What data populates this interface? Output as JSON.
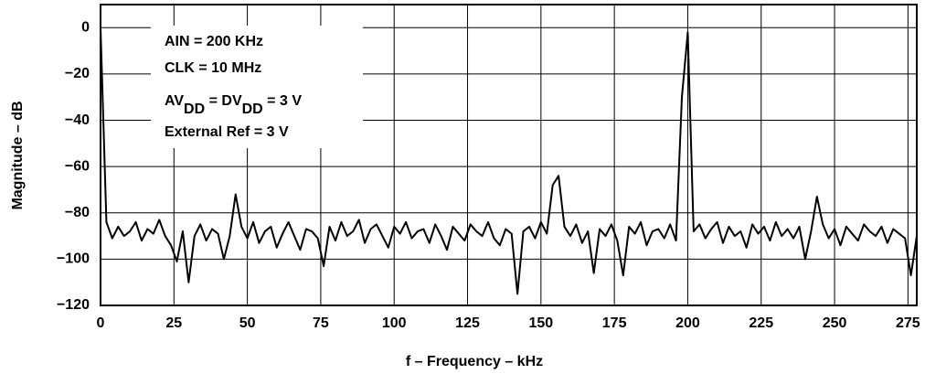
{
  "chart_data": {
    "type": "line",
    "xlabel": "f – Frequency – kHz",
    "ylabel": "Magnitude – dB",
    "annotations": [
      [
        {
          "text": "AIN  = 200 KHz"
        }
      ],
      [
        {
          "text": "CLK = 10 MHz"
        }
      ],
      [
        {
          "text": "AV"
        },
        {
          "text": "DD",
          "sub": true
        },
        {
          "text": " = DV"
        },
        {
          "text": "DD",
          "sub": true
        },
        {
          "text": " = 3 V"
        }
      ],
      [
        {
          "text": "External Ref = 3 V"
        }
      ]
    ],
    "x": [
      0,
      2,
      4,
      6,
      8,
      10,
      12,
      14,
      16,
      18,
      20,
      22,
      24,
      26,
      28,
      30,
      32,
      34,
      36,
      38,
      40,
      42,
      44,
      46,
      48,
      50,
      52,
      54,
      56,
      58,
      60,
      62,
      64,
      66,
      68,
      70,
      72,
      74,
      76,
      78,
      80,
      82,
      84,
      86,
      88,
      90,
      92,
      94,
      96,
      98,
      100,
      102,
      104,
      106,
      108,
      110,
      112,
      114,
      116,
      118,
      120,
      122,
      124,
      126,
      128,
      130,
      132,
      134,
      136,
      138,
      140,
      142,
      144,
      146,
      148,
      150,
      152,
      154,
      156,
      158,
      160,
      162,
      164,
      166,
      168,
      170,
      172,
      174,
      176,
      178,
      180,
      182,
      184,
      186,
      188,
      190,
      192,
      194,
      196,
      198,
      200,
      202,
      204,
      206,
      208,
      210,
      212,
      214,
      216,
      218,
      220,
      222,
      224,
      226,
      228,
      230,
      232,
      234,
      236,
      238,
      240,
      242,
      244,
      246,
      248,
      250,
      252,
      254,
      256,
      258,
      260,
      262,
      264,
      266,
      268,
      270,
      272,
      274,
      276,
      278
    ],
    "series": [
      {
        "color": "#000000",
        "values": [
          0,
          -84,
          -91,
          -86,
          -90,
          -88,
          -84,
          -92,
          -87,
          -89,
          -83,
          -90,
          -94,
          -101,
          -88,
          -110,
          -90,
          -85,
          -92,
          -87,
          -89,
          -100,
          -90,
          -72,
          -86,
          -91,
          -84,
          -93,
          -88,
          -86,
          -95,
          -89,
          -84,
          -90,
          -96,
          -87,
          -88,
          -91,
          -103,
          -86,
          -92,
          -84,
          -90,
          -88,
          -83,
          -93,
          -87,
          -85,
          -90,
          -95,
          -86,
          -89,
          -84,
          -91,
          -88,
          -87,
          -93,
          -85,
          -90,
          -96,
          -86,
          -89,
          -92,
          -85,
          -88,
          -90,
          -84,
          -91,
          -94,
          -87,
          -89,
          -115,
          -88,
          -86,
          -91,
          -84,
          -89,
          -68,
          -64,
          -86,
          -90,
          -85,
          -93,
          -88,
          -106,
          -87,
          -90,
          -85,
          -92,
          -107,
          -86,
          -89,
          -84,
          -94,
          -88,
          -87,
          -91,
          -85,
          -92,
          -30,
          -2,
          -88,
          -85,
          -91,
          -87,
          -84,
          -93,
          -86,
          -90,
          -88,
          -95,
          -85,
          -89,
          -86,
          -92,
          -84,
          -90,
          -87,
          -91,
          -86,
          -100,
          -88,
          -73,
          -85,
          -91,
          -87,
          -94,
          -86,
          -89,
          -92,
          -85,
          -88,
          -90,
          -86,
          -93,
          -87,
          -89,
          -91,
          -107,
          -90
        ]
      }
    ],
    "xlim": [
      0,
      278
    ],
    "ylim": [
      -120,
      10
    ],
    "xticks": [
      0,
      25,
      50,
      75,
      100,
      125,
      150,
      175,
      200,
      225,
      250,
      275
    ],
    "yticks": [
      0,
      {
        "value": -20,
        "label": "−20"
      },
      {
        "value": -40,
        "label": "−40"
      },
      {
        "value": -60,
        "label": "−60"
      },
      {
        "value": -80,
        "label": "−80"
      },
      {
        "value": -100,
        "label": "−100"
      },
      {
        "value": -120,
        "label": "−120"
      }
    ],
    "grid": true
  }
}
